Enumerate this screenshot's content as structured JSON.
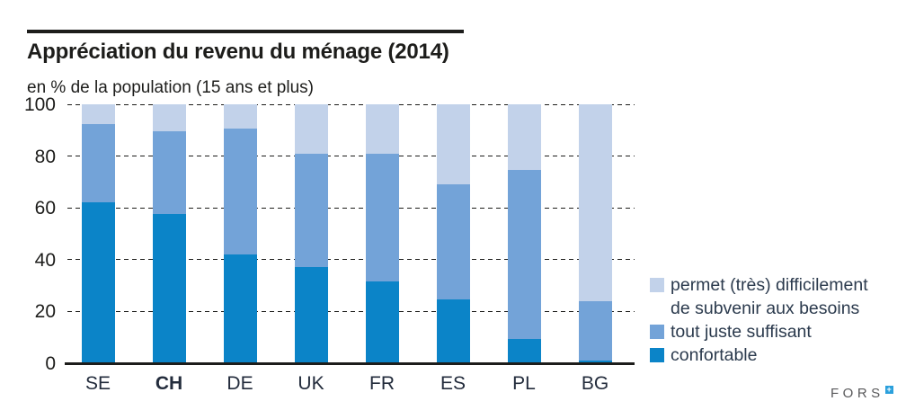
{
  "header": {
    "title": "Appréciation du revenu du ménage (2014)",
    "subtitle": "en % de la population (15 ans et plus)"
  },
  "chart_data": {
    "type": "bar",
    "variant": "stacked-vertical",
    "title": "Appréciation du revenu du ménage (2014)",
    "subtitle": "en % de la population (15 ans et plus)",
    "categories": [
      "SE",
      "CH",
      "DE",
      "UK",
      "FR",
      "ES",
      "PL",
      "BG"
    ],
    "bold_category": "CH",
    "series": [
      {
        "name": "confortable",
        "color": "#0b84c8",
        "values": [
          62,
          57.5,
          42,
          37,
          31.5,
          24.5,
          9.5,
          1
        ]
      },
      {
        "name": "tout juste suffisant",
        "color": "#73a3d8",
        "values": [
          30.5,
          32,
          48.5,
          44,
          49.5,
          44.5,
          65,
          23
        ]
      },
      {
        "name": "permet (très) difficilement de subvenir aux besoins",
        "color": "#c2d2ea",
        "values": [
          7.5,
          10.5,
          9.5,
          19,
          19,
          31,
          25.5,
          76
        ]
      }
    ],
    "xlabel": "",
    "ylabel": "en % de la population (15 ans et plus)",
    "ylim": [
      0,
      100
    ],
    "yticks": [
      0,
      20,
      40,
      60,
      80,
      100
    ],
    "grid": "horizontal-dashed",
    "legend_position": "right"
  },
  "legend": {
    "items": [
      {
        "label_lines": [
          "permet (très) difficilement",
          "de subvenir aux besoins"
        ],
        "color": "#c2d2ea"
      },
      {
        "label_lines": [
          "tout juste suffisant"
        ],
        "color": "#73a3d8"
      },
      {
        "label_lines": [
          "confortable"
        ],
        "color": "#0b84c8"
      }
    ]
  },
  "footer": {
    "logo_text": "FORS",
    "logo_mark": "+"
  }
}
